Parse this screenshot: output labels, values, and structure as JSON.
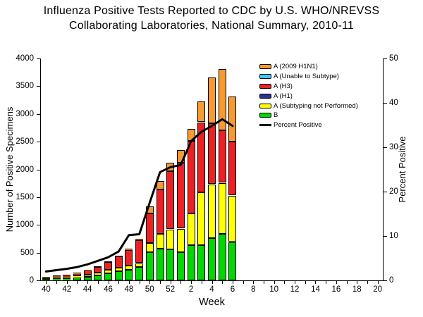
{
  "title": {
    "line1": "Influenza Positive Tests Reported to CDC by U.S. WHO/NREVSS",
    "line2": "Collaborating Laboratories, National Summary, 2010-11"
  },
  "chart_data": {
    "type": "bar",
    "stacked": true,
    "line_overlay": true,
    "title": "Influenza Positive Tests Reported to CDC by U.S. WHO/NREVSS Collaborating Laboratories, National Summary, 2010-11",
    "x_label": "Week",
    "y_left_label": "Number of Positive Specimens",
    "y_right_label": "Percent Positive",
    "y_left_max": 4000,
    "y_left_step": 500,
    "y_right_max": 50,
    "y_right_step": 10,
    "grid": false,
    "legend_position": "upper right",
    "weeks": [
      40,
      41,
      42,
      43,
      44,
      45,
      46,
      47,
      48,
      49,
      50,
      51,
      52,
      1,
      2,
      3,
      4,
      5,
      6,
      7,
      8,
      9,
      10,
      11,
      12,
      13,
      14,
      15,
      16,
      17,
      18,
      19,
      20
    ],
    "x_label_every": 2,
    "data_weeks": [
      40,
      41,
      42,
      43,
      44,
      45,
      46,
      47,
      48,
      49,
      50,
      51,
      52,
      1,
      2,
      3,
      4,
      5,
      6
    ],
    "series": [
      {
        "name": "B",
        "color": "#00D800",
        "values": [
          25,
          34,
          38,
          46,
          63,
          84,
          127,
          160,
          190,
          236,
          506,
          570,
          553,
          506,
          640,
          637,
          768,
          844,
          692
        ]
      },
      {
        "name": "A (Subtyping not Performed)",
        "color": "#FFFF00",
        "values": [
          17,
          25,
          30,
          38,
          42,
          51,
          63,
          72,
          72,
          72,
          161,
          266,
          367,
          424,
          566,
          952,
          965,
          914,
          837
        ]
      },
      {
        "name": "A (H1)",
        "color": "#2E3192",
        "values": [
          1,
          1,
          1,
          1,
          2,
          2,
          2,
          2,
          3,
          3,
          4,
          4,
          4,
          4,
          4,
          4,
          4,
          4,
          4
        ]
      },
      {
        "name": "A (H3)",
        "color": "#ED2024",
        "values": [
          13,
          24,
          28,
          41,
          70,
          103,
          137,
          196,
          284,
          415,
          532,
          797,
          1048,
          1189,
          1305,
          1257,
          1098,
          939,
          964
        ]
      },
      {
        "name": "A (Unable to Subtype)",
        "color": "#33CCFF",
        "values": [
          0,
          0,
          0,
          0,
          0,
          0,
          0,
          0,
          0,
          0,
          2,
          2,
          2,
          2,
          2,
          2,
          2,
          2,
          2
        ]
      },
      {
        "name": "A (2009 H1N1)",
        "color": "#F79B30",
        "values": [
          7,
          9,
          8,
          9,
          13,
          17,
          17,
          17,
          25,
          25,
          125,
          146,
          148,
          230,
          218,
          373,
          818,
          1107,
          811
        ]
      }
    ],
    "line": {
      "name": "Percent Positive",
      "color": "#000000",
      "values": [
        2.0,
        2.3,
        2.6,
        3.0,
        3.6,
        4.4,
        5.2,
        6.5,
        10.2,
        10.4,
        17.5,
        24.4,
        25.5,
        26.0,
        31.4,
        33.5,
        34.8,
        36.3,
        34.8
      ]
    }
  }
}
